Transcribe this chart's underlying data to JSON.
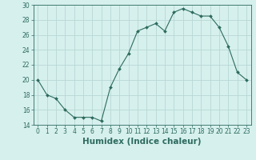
{
  "x": [
    0,
    1,
    2,
    3,
    4,
    5,
    6,
    7,
    8,
    9,
    10,
    11,
    12,
    13,
    14,
    15,
    16,
    17,
    18,
    19,
    20,
    21,
    22,
    23
  ],
  "y": [
    20,
    18,
    17.5,
    16,
    15,
    15,
    15,
    14.5,
    19,
    21.5,
    23.5,
    26.5,
    27,
    27.5,
    26.5,
    29,
    29.5,
    29,
    28.5,
    28.5,
    27,
    24.5,
    21,
    20
  ],
  "line_color": "#2d6b5e",
  "marker": "D",
  "marker_size": 2.0,
  "background_color": "#d6f0ee",
  "grid_color": "#b8d8d4",
  "xlabel": "Humidex (Indice chaleur)",
  "ylabel": "",
  "xlim": [
    -0.5,
    23.5
  ],
  "ylim": [
    14,
    30
  ],
  "yticks": [
    14,
    16,
    18,
    20,
    22,
    24,
    26,
    28,
    30
  ],
  "xticks": [
    0,
    1,
    2,
    3,
    4,
    5,
    6,
    7,
    8,
    9,
    10,
    11,
    12,
    13,
    14,
    15,
    16,
    17,
    18,
    19,
    20,
    21,
    22,
    23
  ],
  "tick_label_size": 5.5,
  "xlabel_fontsize": 7.5,
  "linewidth": 0.8
}
